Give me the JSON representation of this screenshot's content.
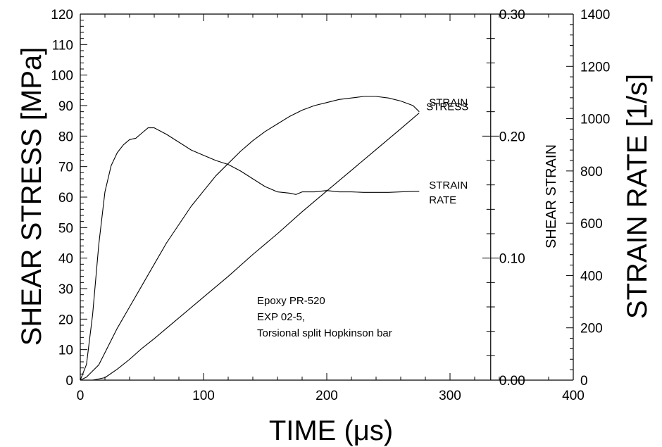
{
  "chart_data": {
    "type": "line",
    "title": "",
    "xlabel": "TIME (μs)",
    "xlim": [
      0,
      400
    ],
    "x_ticks": [
      0,
      100,
      200,
      300,
      400
    ],
    "left_axis": {
      "label": "SHEAR STRESS [MPa]",
      "ylim": [
        0,
        120
      ],
      "ticks": [
        0,
        10,
        20,
        30,
        40,
        50,
        60,
        70,
        80,
        90,
        100,
        110,
        120
      ]
    },
    "strain_axis": {
      "label": "SHEAR STRAIN",
      "ylim": [
        0,
        0.3
      ],
      "ticks": [
        "0.00",
        "0.10",
        "0.20",
        "0.30"
      ],
      "x_position": 333
    },
    "right_axis": {
      "label": "STRAIN RATE  [1/s]",
      "ylim": [
        0,
        1400
      ],
      "ticks": [
        0,
        200,
        400,
        600,
        800,
        1000,
        1200,
        1400
      ]
    },
    "grid": false,
    "legend": "none",
    "annotation": [
      "Epoxy PR-520",
      "EXP 02-5,",
      "Torsional split Hopkinson bar"
    ],
    "series": [
      {
        "name": "STRESS",
        "label_lines": [
          "STRESS"
        ],
        "axis": "left",
        "x": [
          0,
          5,
          10,
          15,
          20,
          30,
          40,
          50,
          60,
          70,
          80,
          90,
          100,
          110,
          120,
          130,
          140,
          150,
          160,
          170,
          180,
          190,
          200,
          210,
          220,
          230,
          240,
          250,
          260,
          270,
          275
        ],
        "y": [
          0,
          1,
          3,
          5,
          9,
          17,
          24,
          31,
          38,
          45,
          51,
          57,
          62,
          67,
          71,
          75,
          78.5,
          81.5,
          84,
          86.5,
          88.5,
          90,
          91,
          92,
          92.5,
          93,
          93,
          92.5,
          91.5,
          90,
          88
        ]
      },
      {
        "name": "STRAIN",
        "label_lines": [
          "STRAIN"
        ],
        "axis": "strain",
        "x": [
          0,
          10,
          20,
          30,
          40,
          50,
          60,
          80,
          100,
          120,
          140,
          160,
          180,
          200,
          220,
          240,
          260,
          275
        ],
        "y": [
          0,
          0,
          0.002,
          0.009,
          0.017,
          0.026,
          0.034,
          0.051,
          0.068,
          0.085,
          0.103,
          0.12,
          0.138,
          0.155,
          0.172,
          0.189,
          0.206,
          0.219
        ]
      },
      {
        "name": "STRAIN RATE",
        "label_lines": [
          "STRAIN",
          "RATE"
        ],
        "axis": "right",
        "x": [
          0,
          5,
          10,
          15,
          20,
          25,
          30,
          35,
          40,
          45,
          50,
          55,
          60,
          70,
          80,
          90,
          100,
          110,
          120,
          130,
          140,
          150,
          160,
          170,
          175,
          180,
          190,
          200,
          210,
          220,
          230,
          240,
          250,
          260,
          270,
          275
        ],
        "y": [
          0,
          60,
          250,
          520,
          720,
          820,
          870,
          900,
          920,
          925,
          945,
          965,
          965,
          940,
          910,
          880,
          860,
          840,
          825,
          800,
          770,
          740,
          720,
          715,
          710,
          720,
          720,
          725,
          720,
          720,
          718,
          718,
          718,
          720,
          722,
          722
        ]
      }
    ]
  }
}
